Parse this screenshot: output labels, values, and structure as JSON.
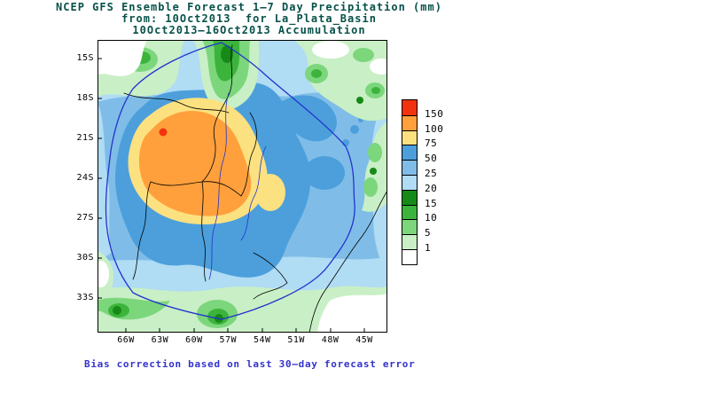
{
  "title": {
    "line1": "NCEP GFS Ensemble Forecast 1–7 Day Precipitation (mm)",
    "line2": "from: 10Oct2013  for La_Plata_Basin",
    "line3": "10Oct2013–16Oct2013 Accumulation"
  },
  "caption": "Bias correction based on last 30–day forecast error",
  "colors": {
    "title_text": "#075149",
    "caption_text": "#3333cc",
    "axis_text": "#000000",
    "basin_outline": "#2233cc"
  },
  "map": {
    "lat_labels": [
      "15S",
      "18S",
      "21S",
      "24S",
      "27S",
      "30S",
      "33S"
    ],
    "lon_labels": [
      "66W",
      "63W",
      "60W",
      "57W",
      "54W",
      "51W",
      "48W",
      "45W"
    ]
  },
  "legend": {
    "values": [
      "150",
      "100",
      "75",
      "50",
      "25",
      "20",
      "15",
      "10",
      "5",
      "1"
    ],
    "colors": [
      "#f2330d",
      "#ffa03c",
      "#fce180",
      "#4c9fdb",
      "#7fbde8",
      "#b0dcf4",
      "#168a16",
      "#3cb43c",
      "#7cd67c",
      "#c9efc6",
      "#ffffff"
    ]
  },
  "chart_data": {
    "type": "heatmap",
    "title": "NCEP GFS Ensemble Forecast 1–7 Day Precipitation (mm)",
    "region": "La_Plata_Basin",
    "init_date": "10Oct2013",
    "valid_period": "10Oct2013–16Oct2013 Accumulation",
    "units": "mm",
    "lat_ticks": [
      "15S",
      "18S",
      "21S",
      "24S",
      "27S",
      "30S",
      "33S"
    ],
    "lon_ticks": [
      "66W",
      "63W",
      "60W",
      "57W",
      "54W",
      "51W",
      "48W",
      "45W"
    ],
    "scale_levels_mm": [
      1,
      5,
      10,
      15,
      20,
      25,
      50,
      75,
      100,
      150
    ],
    "scale_colors_low_to_high": [
      "#ffffff",
      "#c9efc6",
      "#7cd67c",
      "#3cb43c",
      "#168a16",
      "#b0dcf4",
      "#7fbde8",
      "#4c9fdb",
      "#fce180",
      "#ffa03c",
      "#f2330d"
    ],
    "summary": [
      "Small core above 150 mm near 21S 61W",
      "Broad 100-150 mm area over Paraguay and northern Argentina (19S-26S, 57W-63W)",
      "75-100 mm ring around the maximum plus a patch near 24S 54W",
      "25-75 mm over most of the central La Plata basin",
      "1-20 mm along the northern, eastern and southern margins"
    ],
    "note": "Bias correction based on last 30–day forecast error"
  }
}
